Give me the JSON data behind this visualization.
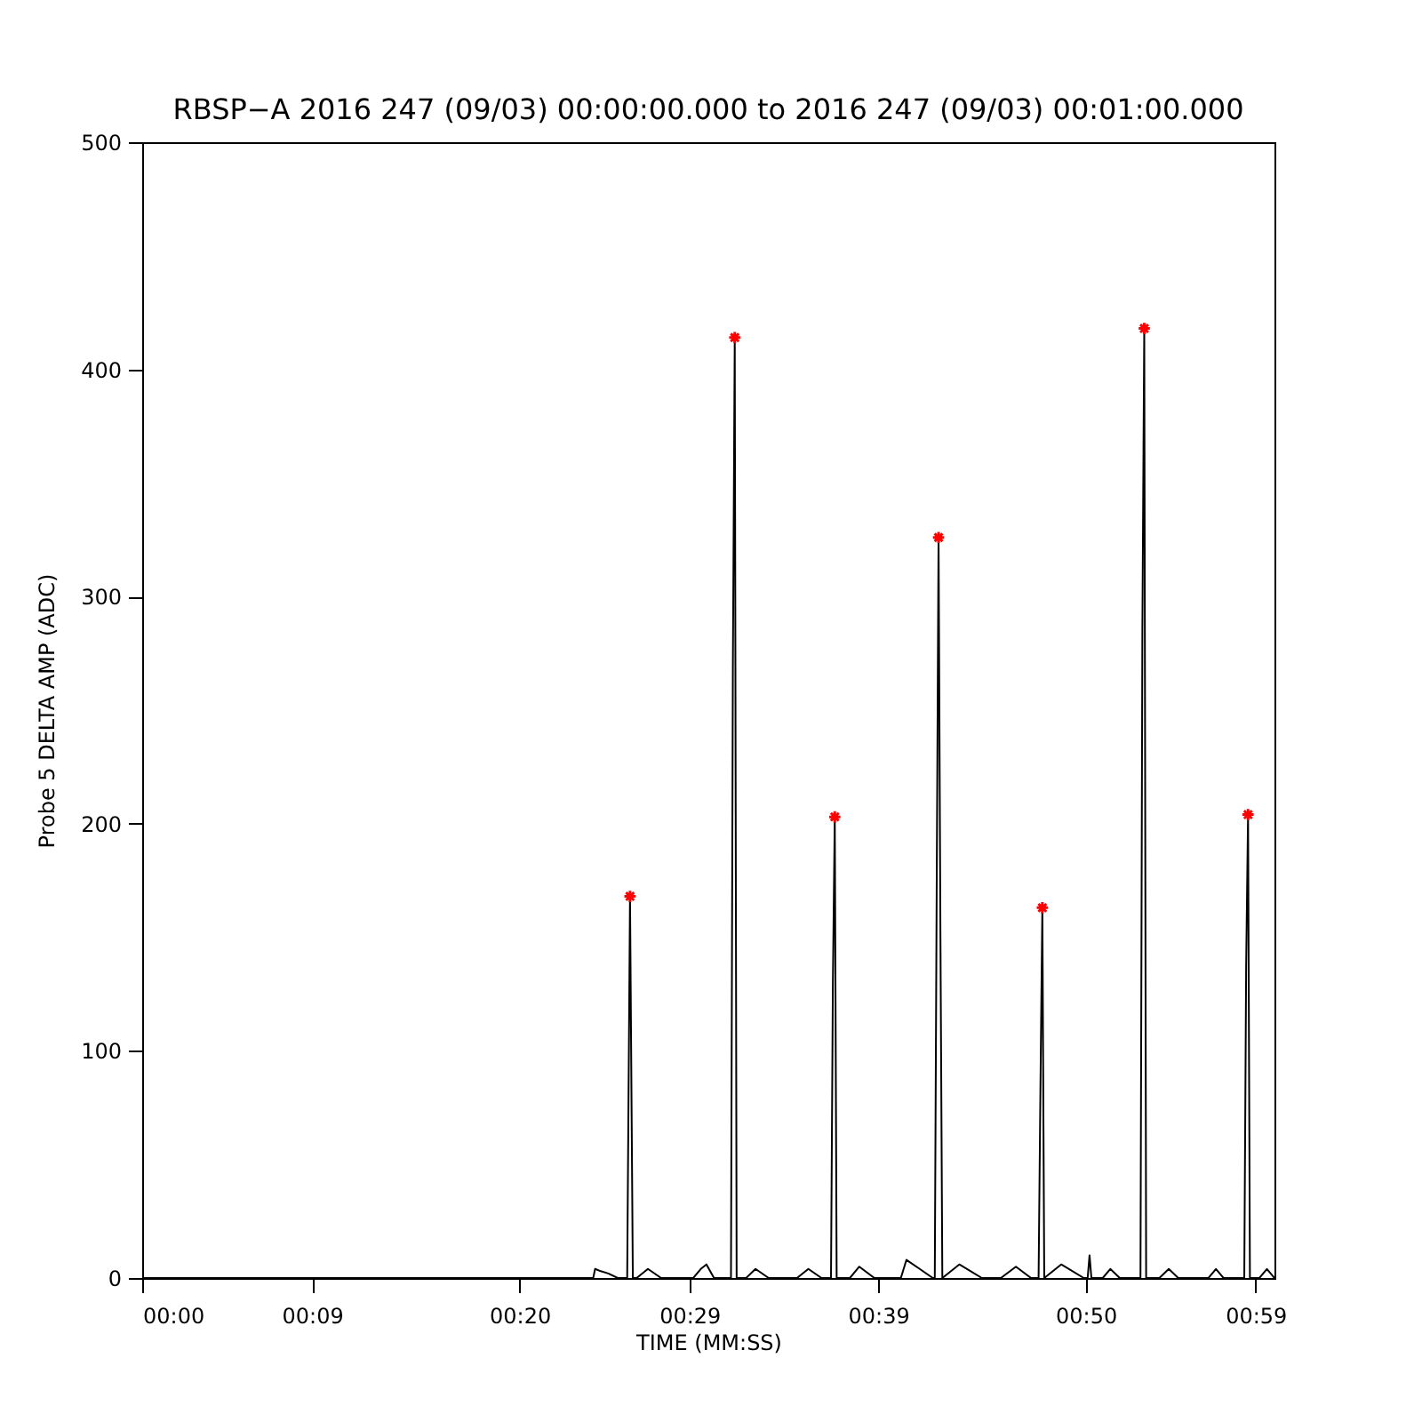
{
  "chart_data": {
    "type": "line",
    "title": "RBSP−A 2016 247 (09/03) 00:00:00.000 to 2016 247 (09/03) 00:01:00.000",
    "xlabel": "TIME (MM:SS)",
    "ylabel": "Probe 5 DELTA AMP (ADC)",
    "xlim": [
      0,
      60
    ],
    "xticks": [
      {
        "value": 0,
        "label": "00:00"
      },
      {
        "value": 9,
        "label": "00:09"
      },
      {
        "value": 20,
        "label": "00:20"
      },
      {
        "value": 29,
        "label": "00:29"
      },
      {
        "value": 39,
        "label": "00:39"
      },
      {
        "value": 50,
        "label": "00:50"
      },
      {
        "value": 59,
        "label": "00:59"
      }
    ],
    "ylim": [
      0,
      500
    ],
    "yticks": [
      0,
      100,
      200,
      300,
      400,
      500
    ],
    "grid": false,
    "series": [
      {
        "color": "#000000",
        "x": [
          0,
          23.9,
          24.0,
          24.3,
          24.7,
          25.2,
          25.7,
          25.85,
          26.0,
          26.2,
          26.8,
          27.5,
          29.2,
          29.6,
          29.9,
          30.3,
          31.2,
          31.3,
          31.4,
          31.5,
          32.0,
          32.5,
          33.2,
          34.7,
          35.3,
          36.0,
          36.5,
          36.6,
          36.7,
          36.8,
          37.5,
          38.0,
          38.8,
          40.2,
          40.5,
          41.2,
          41.9,
          42.0,
          42.1,
          42.2,
          42.3,
          42.4,
          43.3,
          44.5,
          45.5,
          46.3,
          47.1,
          47.5,
          47.6,
          47.7,
          47.8,
          48.7,
          49.9,
          50.1,
          50.2,
          50.3,
          50.9,
          51.3,
          51.8,
          52.9,
          53.0,
          53.1,
          53.2,
          53.9,
          54.4,
          54.9,
          56.5,
          56.9,
          57.3,
          58.4,
          58.5,
          58.6,
          58.7,
          59.2,
          59.6,
          60
        ],
        "values": [
          0,
          0,
          4,
          3,
          2,
          0,
          0,
          168,
          0,
          0,
          4,
          0,
          0,
          4,
          6,
          0,
          0,
          268,
          414,
          0,
          0,
          4,
          0,
          0,
          4,
          0,
          0,
          130,
          203,
          0,
          0,
          5,
          0,
          0,
          8,
          4,
          0,
          0,
          170,
          326,
          150,
          0,
          6,
          0,
          0,
          5,
          0,
          0,
          85,
          163,
          0,
          6,
          0,
          0,
          10,
          0,
          0,
          4,
          0,
          0,
          285,
          418,
          0,
          0,
          4,
          0,
          0,
          4,
          0,
          0,
          138,
          204,
          0,
          0,
          4,
          0
        ]
      },
      {
        "type": "scatter",
        "color": "#ff0000",
        "marker": "cross",
        "x": [
          25.85,
          31.4,
          36.7,
          42.2,
          47.7,
          53.1,
          58.6
        ],
        "values": [
          168,
          414,
          203,
          326,
          163,
          418,
          204
        ]
      }
    ]
  }
}
